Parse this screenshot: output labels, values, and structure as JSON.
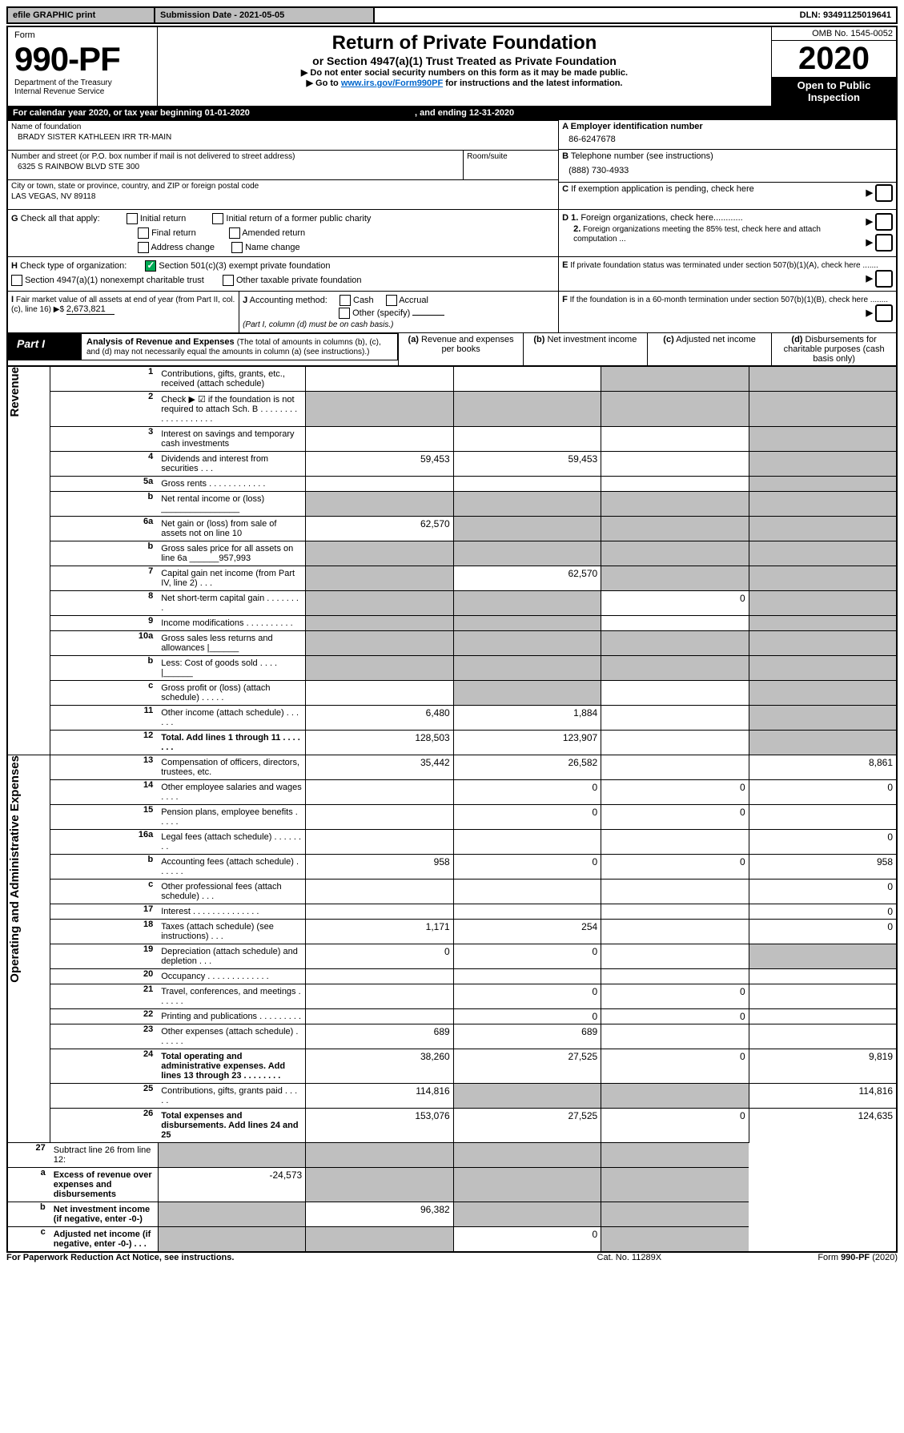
{
  "topbar": {
    "efile": "efile GRAPHIC print",
    "submission": "Submission Date - 2021-05-05",
    "dln": "DLN: 93491125019641"
  },
  "header": {
    "form_label": "Form",
    "form_number": "990-PF",
    "dept1": "Department of the Treasury",
    "dept2": "Internal Revenue Service",
    "title": "Return of Private Foundation",
    "subtitle": "or Section 4947(a)(1) Trust Treated as Private Foundation",
    "note1": "▶ Do not enter social security numbers on this form as it may be made public.",
    "note2_pre": "▶ Go to ",
    "note2_link": "www.irs.gov/Form990PF",
    "note2_post": " for instructions and the latest information.",
    "omb": "OMB No. 1545-0052",
    "year": "2020",
    "open_public": "Open to Public Inspection"
  },
  "calendar": {
    "text1": "For calendar year 2020, or tax year beginning ",
    "begin": "01-01-2020",
    "text2": " , and ending ",
    "end": "12-31-2020"
  },
  "info": {
    "name_label": "Name of foundation",
    "name": "BRADY SISTER KATHLEEN IRR TR-MAIN",
    "addr_label": "Number and street (or P.O. box number if mail is not delivered to street address)",
    "addr": "6325 S RAINBOW BLVD STE 300",
    "room_label": "Room/suite",
    "city_label": "City or town, state or province, country, and ZIP or foreign postal code",
    "city": "LAS VEGAS, NV  89118",
    "ein_label": "A Employer identification number",
    "ein": "86-6247678",
    "phone_label_b": "B",
    "phone_label": " Telephone number (see instructions)",
    "phone": "(888) 730-4933",
    "c_label_b": "C",
    "c_label": " If exemption application is pending, check here",
    "g_label_b": "G",
    "g_label": " Check all that apply:",
    "g_opts": [
      "Initial return",
      "Initial return of a former public charity",
      "Final return",
      "Amended return",
      "Address change",
      "Name change"
    ],
    "d1_b": "D 1.",
    "d1": " Foreign organizations, check here............",
    "d2_b": "2.",
    "d2": " Foreign organizations meeting the 85% test, check here and attach computation ...",
    "h_label_b": "H",
    "h_label": " Check type of organization:",
    "h_opt1": " Section 501(c)(3) exempt private foundation",
    "h_opt2": "Section 4947(a)(1) nonexempt charitable trust",
    "h_opt3": "Other taxable private foundation",
    "e_b": "E",
    "e_text": " If private foundation status was terminated under section 507(b)(1)(A), check here .......",
    "i_b": "I",
    "i_text": " Fair market value of all assets at end of year (from Part II, col. (c), line 16) ▶$ ",
    "i_val": "2,673,821",
    "j_b": "J",
    "j_text": " Accounting method:",
    "j_cash": "Cash",
    "j_accrual": "Accrual",
    "j_other": "Other (specify)",
    "j_note": "(Part I, column (d) must be on cash basis.)",
    "f_b": "F",
    "f_text": " If the foundation is in a 60-month termination under section 507(b)(1)(B), check here ........"
  },
  "part1": {
    "part_label": "Part I",
    "title": "Analysis of Revenue and Expenses ",
    "title_note": "(The total of amounts in columns (b), (c), and (d) may not necessarily equal the amounts in column (a) (see instructions).)",
    "col_a": "Revenue and expenses per books",
    "col_b": "Net investment income",
    "col_c": "Adjusted net income",
    "col_d": "Disbursements for charitable purposes (cash basis only)",
    "col_a_hdr": "(a)",
    "col_b_hdr": "(b)",
    "col_c_hdr": "(c)",
    "col_d_hdr": "(d)"
  },
  "sections": {
    "revenue": "Revenue",
    "expenses": "Operating and Administrative Expenses"
  },
  "rows": [
    {
      "n": "1",
      "desc": "Contributions, gifts, grants, etc., received (attach schedule)",
      "a": "",
      "b": "",
      "c": "shaded",
      "d": "shaded"
    },
    {
      "n": "2",
      "desc": "Check ▶ ☑ if the foundation is not required to attach Sch. B  . . . . . . . . . . . . . . . . . . .",
      "nocells": true
    },
    {
      "n": "3",
      "desc": "Interest on savings and temporary cash investments",
      "a": "",
      "b": "",
      "c": "",
      "d": "shaded"
    },
    {
      "n": "4",
      "desc": "Dividends and interest from securities    .  .  .",
      "a": "59,453",
      "b": "59,453",
      "c": "",
      "d": "shaded"
    },
    {
      "n": "5a",
      "desc": "Gross rents  . . . . . . . . . . . .",
      "a": "",
      "b": "",
      "c": "",
      "d": "shaded"
    },
    {
      "n": "b",
      "desc": "Net rental income or (loss) ________________",
      "a": "shaded",
      "b": "shaded",
      "c": "shaded",
      "d": "shaded"
    },
    {
      "n": "6a",
      "desc": "Net gain or (loss) from sale of assets not on line 10",
      "a": "62,570",
      "b": "shaded",
      "c": "shaded",
      "d": "shaded"
    },
    {
      "n": "b",
      "desc": "Gross sales price for all assets on line 6a ______957,993",
      "a": "shaded",
      "b": "shaded",
      "c": "shaded",
      "d": "shaded"
    },
    {
      "n": "7",
      "desc": "Capital gain net income (from Part IV, line 2)  .  .  .",
      "a": "shaded",
      "b": "62,570",
      "c": "shaded",
      "d": "shaded"
    },
    {
      "n": "8",
      "desc": "Net short-term capital gain  . . . . . . . .",
      "a": "shaded",
      "b": "shaded",
      "c": "0",
      "d": "shaded"
    },
    {
      "n": "9",
      "desc": "Income modifications  . . . . . . . . . .",
      "a": "shaded",
      "b": "shaded",
      "c": "",
      "d": "shaded"
    },
    {
      "n": "10a",
      "desc": "Gross sales less returns and allowances  |______",
      "a": "shaded",
      "b": "shaded",
      "c": "shaded",
      "d": "shaded"
    },
    {
      "n": "b",
      "desc": "Less: Cost of goods sold      .  .  .  .  |______",
      "a": "shaded",
      "b": "shaded",
      "c": "shaded",
      "d": "shaded"
    },
    {
      "n": "c",
      "desc": "Gross profit or (loss) (attach schedule)   .  .  .  .  .",
      "a": "",
      "b": "shaded",
      "c": "",
      "d": "shaded"
    },
    {
      "n": "11",
      "desc": "Other income (attach schedule)    .  .  .  .  .  .",
      "a": "6,480",
      "b": "1,884",
      "c": "",
      "d": "shaded"
    },
    {
      "n": "12",
      "desc": "Total. Add lines 1 through 11   .  .  .  .  .  .  .",
      "bold": true,
      "a": "128,503",
      "b": "123,907",
      "c": "",
      "d": "shaded"
    }
  ],
  "exp_rows": [
    {
      "n": "13",
      "desc": "Compensation of officers, directors, trustees, etc.",
      "a": "35,442",
      "b": "26,582",
      "c": "",
      "d": "8,861"
    },
    {
      "n": "14",
      "desc": "Other employee salaries and wages   .  .  .  .",
      "a": "",
      "b": "0",
      "c": "0",
      "d": "0"
    },
    {
      "n": "15",
      "desc": "Pension plans, employee benefits   .  .  .  .  .",
      "a": "",
      "b": "0",
      "c": "0",
      "d": ""
    },
    {
      "n": "16a",
      "desc": "Legal fees (attach schedule)  .  .  .  .  .  .  .  .",
      "a": "",
      "b": "",
      "c": "",
      "d": "0"
    },
    {
      "n": "b",
      "desc": "Accounting fees (attach schedule)  .  .  .  .  .  .",
      "a": "958",
      "b": "0",
      "c": "0",
      "d": "958"
    },
    {
      "n": "c",
      "desc": "Other professional fees (attach schedule)   .  .  .",
      "a": "",
      "b": "",
      "c": "",
      "d": "0"
    },
    {
      "n": "17",
      "desc": "Interest  .  .  .  .  .  .  .  .  .  .  .  .  .  .",
      "a": "",
      "b": "",
      "c": "",
      "d": "0"
    },
    {
      "n": "18",
      "desc": "Taxes (attach schedule) (see instructions)    .  .  .",
      "a": "1,171",
      "b": "254",
      "c": "",
      "d": "0"
    },
    {
      "n": "19",
      "desc": "Depreciation (attach schedule) and depletion   .  .  .",
      "a": "0",
      "b": "0",
      "c": "",
      "d": "shaded"
    },
    {
      "n": "20",
      "desc": "Occupancy  .  .  .  .  .  .  .  .  .  .  .  .  .",
      "a": "",
      "b": "",
      "c": "",
      "d": ""
    },
    {
      "n": "21",
      "desc": "Travel, conferences, and meetings  .  .  .  .  .  .",
      "a": "",
      "b": "0",
      "c": "0",
      "d": ""
    },
    {
      "n": "22",
      "desc": "Printing and publications  .  .  .  .  .  .  .  .  .",
      "a": "",
      "b": "0",
      "c": "0",
      "d": ""
    },
    {
      "n": "23",
      "desc": "Other expenses (attach schedule)   .  .  .  .  .  .",
      "a": "689",
      "b": "689",
      "c": "",
      "d": ""
    },
    {
      "n": "24",
      "desc": "Total operating and administrative expenses. Add lines 13 through 23   .  .  .  .  .  .  .  .",
      "bold": true,
      "a": "38,260",
      "b": "27,525",
      "c": "0",
      "d": "9,819"
    },
    {
      "n": "25",
      "desc": "Contributions, gifts, grants paid    .  .  .  .  .",
      "a": "114,816",
      "b": "shaded",
      "c": "shaded",
      "d": "114,816"
    },
    {
      "n": "26",
      "desc": "Total expenses and disbursements. Add lines 24 and 25",
      "bold": true,
      "a": "153,076",
      "b": "27,525",
      "c": "0",
      "d": "124,635"
    }
  ],
  "final_rows": [
    {
      "n": "27",
      "desc": "Subtract line 26 from line 12:",
      "a": "shaded",
      "b": "shaded",
      "c": "shaded",
      "d": "shaded"
    },
    {
      "n": "a",
      "desc": "Excess of revenue over expenses and disbursements",
      "bold": true,
      "a": "-24,573",
      "b": "shaded",
      "c": "shaded",
      "d": "shaded"
    },
    {
      "n": "b",
      "desc": "Net investment income (if negative, enter -0-)",
      "bold": true,
      "a": "shaded",
      "b": "96,382",
      "c": "shaded",
      "d": "shaded"
    },
    {
      "n": "c",
      "desc": "Adjusted net income (if negative, enter -0-)   .  .  .",
      "bold": true,
      "a": "shaded",
      "b": "shaded",
      "c": "0",
      "d": "shaded"
    }
  ],
  "footer": {
    "left": "For Paperwork Reduction Act Notice, see instructions.",
    "mid": "Cat. No. 11289X",
    "right": "Form 990-PF (2020)"
  }
}
